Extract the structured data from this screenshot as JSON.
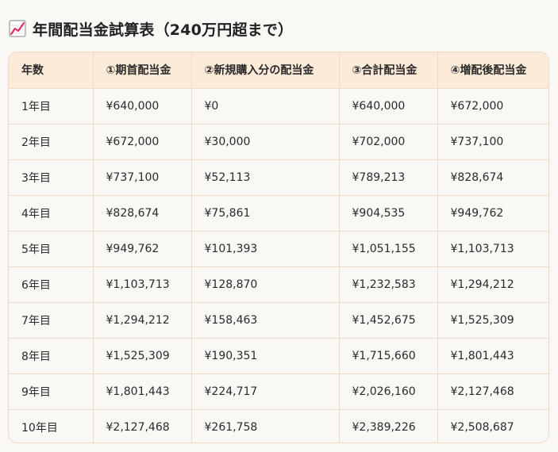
{
  "title": {
    "text": "年間配当金試算表（240万円超まで）",
    "icon": "chart-increasing-icon"
  },
  "table": {
    "headers": [
      "年数",
      "①期首配当金",
      "②新規購入分の配当金",
      "③合計配当金",
      "④増配後配当金"
    ],
    "rows": [
      [
        "1年目",
        "¥640,000",
        "¥0",
        "¥640,000",
        "¥672,000"
      ],
      [
        "2年目",
        "¥672,000",
        "¥30,000",
        "¥702,000",
        "¥737,100"
      ],
      [
        "3年目",
        "¥737,100",
        "¥52,113",
        "¥789,213",
        "¥828,674"
      ],
      [
        "4年目",
        "¥828,674",
        "¥75,861",
        "¥904,535",
        "¥949,762"
      ],
      [
        "5年目",
        "¥949,762",
        "¥101,393",
        "¥1,051,155",
        "¥1,103,713"
      ],
      [
        "6年目",
        "¥1,103,713",
        "¥128,870",
        "¥1,232,583",
        "¥1,294,212"
      ],
      [
        "7年目",
        "¥1,294,212",
        "¥158,463",
        "¥1,452,675",
        "¥1,525,309"
      ],
      [
        "8年目",
        "¥1,525,309",
        "¥190,351",
        "¥1,715,660",
        "¥1,801,443"
      ],
      [
        "9年目",
        "¥1,801,443",
        "¥224,717",
        "¥2,026,160",
        "¥2,127,468"
      ],
      [
        "10年目",
        "¥2,127,468",
        "¥261,758",
        "¥2,389,226",
        "¥2,508,687"
      ]
    ]
  },
  "colors": {
    "header_bg": "#fdebd9",
    "border": "#f0d8c4",
    "page_bg": "#faf8f4",
    "icon_line": "#e0245e"
  }
}
